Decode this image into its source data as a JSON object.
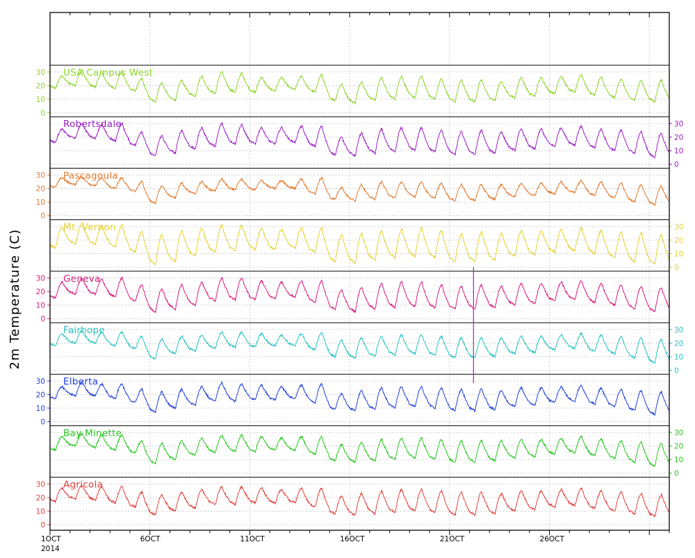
{
  "chart_data": {
    "type": "line",
    "ylabel": "2m Temperature (C)",
    "x_tick_labels": [
      "1OCT",
      "6OCT",
      "11OCT",
      "16OCT",
      "21OCT",
      "26OCT"
    ],
    "x_year_label": "2014",
    "x_range_days": [
      1,
      32
    ],
    "y_tick_labels": [
      "0",
      "10",
      "20",
      "30"
    ],
    "ylim": [
      -3,
      35
    ],
    "grid": true,
    "series": [
      {
        "name": "USA  Campus West",
        "color": "#8ed42b",
        "axis_side": "left",
        "daily_max": [
          27,
          31,
          29,
          30,
          25,
          22,
          24,
          27,
          30,
          29,
          26,
          26,
          27,
          28,
          21,
          23,
          26,
          27,
          27,
          25,
          24,
          24,
          23,
          26,
          26,
          27,
          28,
          26,
          25,
          24,
          24
        ],
        "daily_min": [
          18,
          20,
          19,
          18,
          16,
          8,
          9,
          12,
          14,
          15,
          15,
          16,
          17,
          15,
          9,
          7,
          9,
          10,
          11,
          10,
          8,
          8,
          9,
          11,
          12,
          14,
          15,
          13,
          11,
          9,
          8
        ]
      },
      {
        "name": "Robertsdale",
        "color": "#9a1fc4",
        "axis_side": "right",
        "daily_max": [
          26,
          30,
          29,
          30,
          24,
          21,
          25,
          27,
          30,
          29,
          27,
          27,
          28,
          28,
          20,
          23,
          26,
          27,
          27,
          25,
          24,
          25,
          24,
          26,
          26,
          27,
          28,
          26,
          25,
          24,
          23
        ],
        "daily_min": [
          16,
          19,
          19,
          17,
          14,
          6,
          8,
          11,
          13,
          15,
          15,
          15,
          16,
          13,
          7,
          6,
          8,
          9,
          10,
          9,
          7,
          7,
          8,
          10,
          11,
          13,
          14,
          12,
          10,
          8,
          5
        ]
      },
      {
        "name": "Pascagoula",
        "color": "#e27a2f",
        "axis_side": "left",
        "daily_max": [
          28,
          29,
          28,
          28,
          25,
          22,
          24,
          25,
          27,
          27,
          26,
          26,
          27,
          28,
          21,
          23,
          25,
          25,
          25,
          24,
          23,
          23,
          23,
          24,
          24,
          25,
          26,
          25,
          24,
          23,
          22
        ],
        "daily_min": [
          21,
          23,
          22,
          20,
          18,
          9,
          13,
          16,
          18,
          19,
          19,
          20,
          20,
          16,
          12,
          11,
          12,
          13,
          14,
          13,
          11,
          11,
          12,
          14,
          15,
          16,
          17,
          15,
          13,
          10,
          8
        ]
      },
      {
        "name": "Mt. Vernon",
        "color": "#e5d12e",
        "axis_side": "right",
        "daily_max": [
          30,
          32,
          30,
          31,
          26,
          24,
          27,
          29,
          31,
          31,
          29,
          28,
          29,
          29,
          24,
          25,
          27,
          28,
          29,
          27,
          25,
          26,
          25,
          27,
          27,
          28,
          29,
          27,
          26,
          25,
          24
        ],
        "daily_min": [
          14,
          17,
          17,
          15,
          11,
          2,
          4,
          8,
          11,
          12,
          13,
          13,
          14,
          11,
          4,
          3,
          5,
          7,
          8,
          7,
          4,
          4,
          5,
          8,
          9,
          11,
          12,
          10,
          7,
          4,
          2
        ]
      },
      {
        "name": "Geneva",
        "color": "#d81b7e",
        "axis_side": "left",
        "daily_max": [
          27,
          30,
          29,
          30,
          25,
          22,
          25,
          27,
          30,
          30,
          28,
          27,
          28,
          28,
          21,
          23,
          26,
          27,
          27,
          25,
          24,
          25,
          24,
          26,
          26,
          27,
          28,
          26,
          25,
          24,
          23
        ],
        "daily_min": [
          15,
          18,
          18,
          16,
          13,
          5,
          7,
          10,
          13,
          14,
          14,
          15,
          16,
          12,
          7,
          5,
          7,
          8,
          9,
          8,
          7,
          7,
          8,
          10,
          11,
          13,
          14,
          12,
          10,
          7,
          5
        ]
      },
      {
        "name": "Fairhope",
        "color": "#26c2c0",
        "axis_side": "right",
        "daily_max": [
          27,
          29,
          28,
          28,
          25,
          23,
          25,
          26,
          28,
          28,
          27,
          26,
          27,
          28,
          22,
          24,
          25,
          26,
          26,
          25,
          24,
          24,
          24,
          25,
          25,
          26,
          27,
          26,
          25,
          24,
          23
        ],
        "daily_min": [
          18,
          20,
          20,
          18,
          16,
          8,
          12,
          14,
          16,
          17,
          17,
          18,
          18,
          15,
          10,
          9,
          10,
          11,
          12,
          11,
          9,
          9,
          10,
          12,
          13,
          15,
          16,
          14,
          12,
          9,
          5
        ]
      },
      {
        "name": "Elberta",
        "color": "#1f3fd9",
        "axis_side": "left",
        "daily_max": [
          26,
          29,
          28,
          28,
          24,
          22,
          24,
          26,
          29,
          28,
          27,
          26,
          27,
          28,
          21,
          23,
          25,
          26,
          26,
          25,
          24,
          24,
          23,
          25,
          25,
          26,
          27,
          25,
          24,
          23,
          22
        ],
        "daily_min": [
          17,
          19,
          19,
          17,
          14,
          7,
          10,
          12,
          15,
          15,
          16,
          16,
          17,
          14,
          9,
          8,
          9,
          10,
          11,
          10,
          8,
          8,
          9,
          11,
          12,
          14,
          15,
          13,
          11,
          8,
          5
        ]
      },
      {
        "name": "Bay  Minette",
        "color": "#27c71f",
        "axis_side": "right",
        "daily_max": [
          27,
          29,
          28,
          28,
          24,
          22,
          24,
          26,
          28,
          28,
          27,
          26,
          27,
          27,
          21,
          23,
          25,
          26,
          26,
          25,
          24,
          24,
          24,
          25,
          25,
          26,
          27,
          25,
          24,
          23,
          22
        ],
        "daily_min": [
          17,
          20,
          19,
          17,
          15,
          7,
          10,
          13,
          15,
          16,
          16,
          17,
          17,
          14,
          9,
          8,
          9,
          10,
          11,
          10,
          8,
          8,
          9,
          11,
          12,
          14,
          15,
          13,
          11,
          8,
          5
        ]
      },
      {
        "name": "Agricola",
        "color": "#e0413c",
        "axis_side": "left",
        "daily_max": [
          27,
          29,
          28,
          28,
          24,
          22,
          24,
          26,
          28,
          28,
          27,
          26,
          27,
          27,
          21,
          23,
          25,
          26,
          26,
          25,
          24,
          24,
          23,
          25,
          25,
          26,
          27,
          25,
          24,
          23,
          22
        ],
        "daily_min": [
          17,
          19,
          18,
          16,
          13,
          7,
          10,
          12,
          15,
          15,
          16,
          16,
          16,
          13,
          8,
          7,
          8,
          9,
          10,
          9,
          7,
          7,
          8,
          10,
          11,
          13,
          14,
          12,
          10,
          8,
          6
        ]
      }
    ],
    "event_marker": {
      "day": 22.2,
      "color": "#a020c0"
    }
  }
}
